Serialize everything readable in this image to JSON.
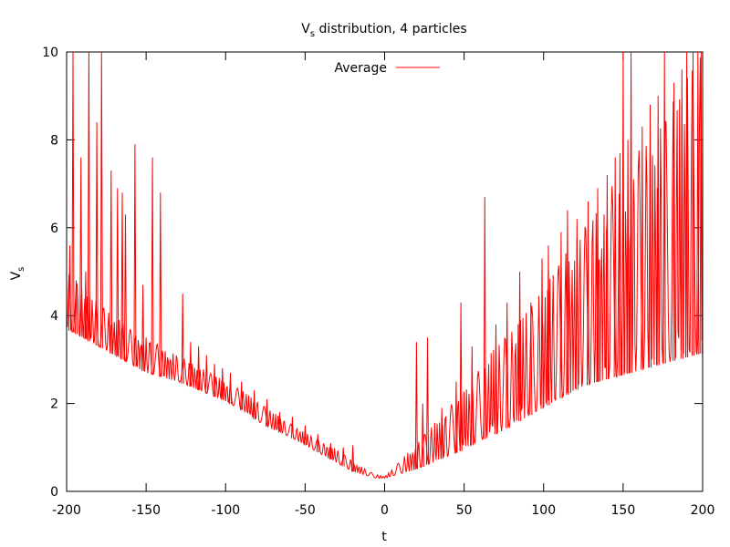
{
  "chart_data": {
    "type": "line",
    "title": {
      "main": "V",
      "sub": "s",
      "rest": " distribution, 4 particles"
    },
    "xlabel": "t",
    "ylabel": {
      "main": "V",
      "sub": "s"
    },
    "xlim": [
      -200,
      200
    ],
    "ylim": [
      0,
      10
    ],
    "xticks": [
      -200,
      -150,
      -100,
      -50,
      0,
      50,
      100,
      150,
      200
    ],
    "yticks": [
      0,
      2,
      4,
      6,
      8,
      10
    ],
    "xtick_labels": [
      "-200",
      "-150",
      "-100",
      "-50",
      "0",
      "50",
      "100",
      "150",
      "200"
    ],
    "ytick_labels": [
      "0",
      "2",
      "4",
      "6",
      "8",
      "10"
    ],
    "grid": false,
    "legend": "top-center",
    "series": [
      {
        "name": "Average",
        "color": "#ff0000",
        "envelope_x": [
          -200,
          -190,
          -180,
          -170,
          -160,
          -150,
          -140,
          -130,
          -120,
          -110,
          -100,
          -90,
          -80,
          -70,
          -60,
          -50,
          -40,
          -30,
          -20,
          -10,
          -5,
          0,
          5,
          10,
          20,
          30,
          40,
          50,
          60,
          70,
          80,
          90,
          100,
          110,
          120,
          130,
          140,
          150,
          160,
          170,
          180,
          190,
          200
        ],
        "envelope_low": [
          3.7,
          3.5,
          3.3,
          3.1,
          2.9,
          2.7,
          2.6,
          2.5,
          2.35,
          2.2,
          2.05,
          1.85,
          1.6,
          1.4,
          1.25,
          1.05,
          0.85,
          0.65,
          0.45,
          0.35,
          0.3,
          0.3,
          0.35,
          0.4,
          0.5,
          0.65,
          0.8,
          0.95,
          1.15,
          1.3,
          1.5,
          1.7,
          1.9,
          2.1,
          2.3,
          2.45,
          2.55,
          2.65,
          2.75,
          2.85,
          2.95,
          3.05,
          3.15
        ],
        "envelope_high": [
          5.0,
          4.6,
          4.3,
          4.0,
          3.7,
          3.5,
          3.3,
          3.1,
          2.9,
          2.7,
          2.5,
          2.3,
          2.05,
          1.8,
          1.55,
          1.35,
          1.15,
          0.95,
          0.7,
          0.45,
          0.38,
          0.35,
          0.5,
          0.7,
          1.1,
          1.5,
          1.9,
          2.3,
          2.8,
          3.3,
          3.7,
          4.1,
          4.6,
          5.2,
          5.8,
          6.3,
          6.8,
          7.3,
          7.8,
          8.3,
          8.8,
          9.4,
          10.0
        ],
        "spikes": [
          [
            -198,
            5.6
          ],
          [
            -196,
            10.0
          ],
          [
            -194,
            4.8
          ],
          [
            -191,
            7.6
          ],
          [
            -188,
            5.0
          ],
          [
            -186,
            10.0
          ],
          [
            -181,
            8.4
          ],
          [
            -178,
            10.0
          ],
          [
            -172,
            7.3
          ],
          [
            -168,
            6.9
          ],
          [
            -165,
            6.8
          ],
          [
            -163,
            6.3
          ],
          [
            -157,
            7.9
          ],
          [
            -152,
            4.7
          ],
          [
            -146,
            7.6
          ],
          [
            -141,
            6.8
          ],
          [
            -127,
            4.5
          ],
          [
            -122,
            3.4
          ],
          [
            -117,
            3.3
          ],
          [
            -112,
            3.1
          ],
          [
            -107,
            2.9
          ],
          [
            -102,
            2.8
          ],
          [
            -97,
            2.7
          ],
          [
            -90,
            2.5
          ],
          [
            -82,
            2.3
          ],
          [
            -74,
            2.1
          ],
          [
            -66,
            1.8
          ],
          [
            -58,
            1.7
          ],
          [
            -50,
            1.5
          ],
          [
            -42,
            1.3
          ],
          [
            -34,
            1.1
          ],
          [
            -26,
            1.0
          ],
          [
            -20,
            1.05
          ],
          [
            20,
            3.4
          ],
          [
            24,
            2.0
          ],
          [
            27,
            3.5
          ],
          [
            36,
            1.9
          ],
          [
            45,
            2.5
          ],
          [
            48,
            4.3
          ],
          [
            55,
            3.3
          ],
          [
            63,
            6.7
          ],
          [
            70,
            3.8
          ],
          [
            77,
            4.3
          ],
          [
            85,
            5.0
          ],
          [
            92,
            4.3
          ],
          [
            99,
            5.3
          ],
          [
            103,
            5.6
          ],
          [
            111,
            5.9
          ],
          [
            115,
            6.4
          ],
          [
            121,
            6.2
          ],
          [
            128,
            6.6
          ],
          [
            134,
            6.9
          ],
          [
            140,
            7.2
          ],
          [
            145,
            7.6
          ],
          [
            148,
            7.7
          ],
          [
            150,
            10.0
          ],
          [
            153,
            8.0
          ],
          [
            155,
            10.0
          ],
          [
            162,
            8.3
          ],
          [
            167,
            8.8
          ],
          [
            172,
            9.0
          ],
          [
            176,
            10.0
          ],
          [
            182,
            9.3
          ],
          [
            187,
            9.6
          ],
          [
            190,
            10.0
          ],
          [
            194,
            10.0
          ],
          [
            197,
            10.0
          ],
          [
            199,
            10.0
          ]
        ]
      }
    ]
  }
}
